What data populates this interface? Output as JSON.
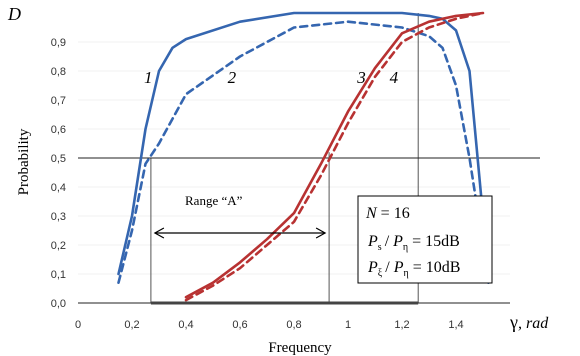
{
  "chart_data": {
    "type": "line",
    "ylabel": "Probability",
    "ylabel_symbol": "D",
    "xlabel": "Frequency",
    "xlabel_symbol": "γ",
    "xlabel_unit": ", rad",
    "xlim": [
      0,
      1.6
    ],
    "ylim": [
      0,
      1.0
    ],
    "x_ticks": [
      "0",
      "0,2",
      "0,4",
      "0,6",
      "0,8",
      "1",
      "1,2",
      "1,4"
    ],
    "y_ticks": [
      "0,0",
      "0,1",
      "0,2",
      "0,3",
      "0,4",
      "0,5",
      "0,6",
      "0,7",
      "0,8",
      "0,9"
    ],
    "threshold": 0.5,
    "range_label": "Range “A”",
    "range_a": [
      0.27,
      0.93
    ],
    "dropline_x": [
      0.27,
      0.93,
      1.26
    ],
    "params": {
      "n_label": "N",
      "n_eq": " = 16",
      "p1_num": "P",
      "p1_num_sub": "s",
      "p1_den": "P",
      "p1_den_sub": "η",
      "p1_value": "= 15dB",
      "p2_num": "P",
      "p2_num_sub": "ξ",
      "p2_den": "P",
      "p2_den_sub": "η",
      "p2_value": "= 10dB"
    },
    "series": [
      {
        "name": "1",
        "color": "#3566b0",
        "dash": false,
        "x": [
          0.15,
          0.2,
          0.25,
          0.3,
          0.35,
          0.4,
          0.6,
          0.8,
          1.0,
          1.2,
          1.3,
          1.35,
          1.4,
          1.45,
          1.48,
          1.5,
          1.52
        ],
        "y": [
          0.1,
          0.3,
          0.6,
          0.8,
          0.88,
          0.91,
          0.97,
          1.0,
          1.0,
          1.0,
          0.99,
          0.98,
          0.94,
          0.8,
          0.5,
          0.3,
          0.1
        ]
      },
      {
        "name": "2",
        "color": "#3566b0",
        "dash": true,
        "x": [
          0.15,
          0.2,
          0.25,
          0.3,
          0.4,
          0.6,
          0.8,
          1.0,
          1.2,
          1.3,
          1.35,
          1.4,
          1.45,
          1.5,
          1.52
        ],
        "y": [
          0.07,
          0.25,
          0.48,
          0.55,
          0.72,
          0.85,
          0.95,
          0.97,
          0.95,
          0.92,
          0.88,
          0.75,
          0.5,
          0.2,
          0.07
        ]
      },
      {
        "name": "3",
        "color": "#b83232",
        "dash": false,
        "x": [
          0.4,
          0.5,
          0.6,
          0.7,
          0.8,
          0.9,
          1.0,
          1.1,
          1.2,
          1.3,
          1.4,
          1.5
        ],
        "y": [
          0.02,
          0.07,
          0.14,
          0.22,
          0.31,
          0.48,
          0.66,
          0.81,
          0.93,
          0.97,
          0.99,
          1.0
        ]
      },
      {
        "name": "4",
        "color": "#b83232",
        "dash": true,
        "x": [
          0.4,
          0.5,
          0.6,
          0.7,
          0.8,
          0.9,
          1.0,
          1.1,
          1.2,
          1.3,
          1.4,
          1.5
        ],
        "y": [
          0.01,
          0.06,
          0.12,
          0.2,
          0.28,
          0.44,
          0.62,
          0.78,
          0.9,
          0.95,
          0.98,
          1.0
        ]
      }
    ],
    "series_labels_pos": [
      {
        "name": "1",
        "x": 0.26,
        "y": 0.78
      },
      {
        "name": "2",
        "x": 0.57,
        "y": 0.78
      },
      {
        "name": "3",
        "x": 1.05,
        "y": 0.78
      },
      {
        "name": "4",
        "x": 1.17,
        "y": 0.78
      }
    ]
  }
}
